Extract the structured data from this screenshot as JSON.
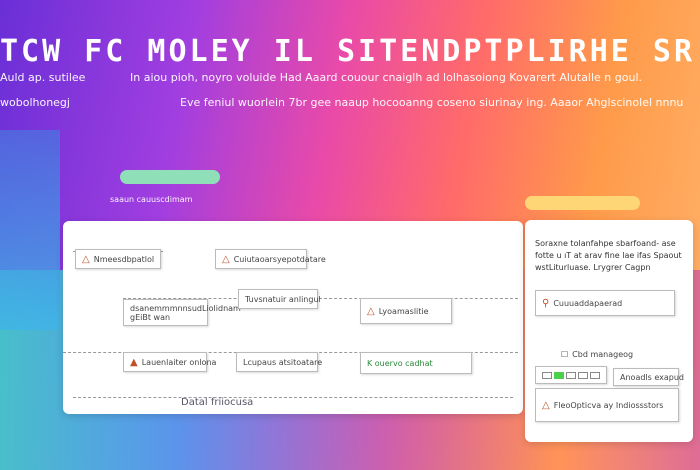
{
  "header": {
    "title": "TCW FC MOLEY IL SITENDPTPLIRHE SR",
    "left_lines": [
      "Auld ap. sutilee",
      "wobolhonegj"
    ],
    "line1": "In aiou pioh, noyro voluide Had Aaard couour cnaiglh ad lolhasoiong Kovarert Alutalle n goul.",
    "line2": "Eve feniul wuorlein 7br gee naaup hocooanng coseno siurinay ing. Aaaor Ahglscinolel nnnu"
  },
  "flow": {
    "caption": "saaun cauuscdimam",
    "footer": "Datal friiocusa",
    "nodes": [
      "Nmeesdbpatlol",
      "Cuiutaoarsyepotdatare",
      "dsanemmmnnsudLiolidnam gEiBt wan",
      "Tuvsnatuir anlingul",
      "Lyoamaslitie",
      "Lauenlaiter onlona",
      "Lcupaus atsitoatare",
      "K ouervo cadhat"
    ]
  },
  "side": {
    "text": "Soraxne tolanfahpe sbarfoand- ase fotte u ıT at arav fine lae ifas Spaout wstLiturluase. Lrygrer Cagpn",
    "item1": "Cuuuaddapaerad",
    "item2": "Cbd manageog",
    "item3": "Anoadls exapud",
    "item4": "FleoOpticva ay Indiossstors"
  },
  "colors": {
    "accent_green": "#7ed9a6",
    "accent_yellow": "#ffd36a"
  }
}
